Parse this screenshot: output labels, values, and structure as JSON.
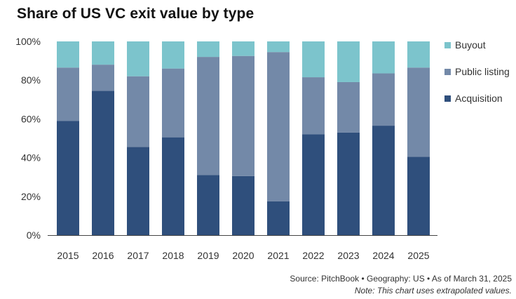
{
  "title": "Share of US VC exit value by type",
  "colors": {
    "buyout": "#7cc4cc",
    "public_listing": "#7389a8",
    "acquisition": "#2f4f7c",
    "axis": "#444444",
    "tick_text": "#333333"
  },
  "legend": [
    {
      "label": "Buyout",
      "color": "#7cc4cc"
    },
    {
      "label": "Public listing",
      "color": "#7389a8"
    },
    {
      "label": "Acquisition",
      "color": "#2f4f7c"
    }
  ],
  "footer": {
    "source": "Source: PitchBook  •  Geography: US  •  As of March 31, 2025",
    "note": "Note: This chart uses extrapolated values."
  },
  "chart_data": {
    "type": "bar",
    "stacked": true,
    "title": "Share of US VC exit value by type",
    "xlabel": "",
    "ylabel": "",
    "ylim": [
      0,
      100
    ],
    "yticks": [
      "0%",
      "20%",
      "40%",
      "60%",
      "80%",
      "100%"
    ],
    "categories": [
      "2015",
      "2016",
      "2017",
      "2018",
      "2019",
      "2020",
      "2021",
      "2022",
      "2023",
      "2024",
      "2025"
    ],
    "series": [
      {
        "name": "Acquisition",
        "values": [
          59,
          74.5,
          45.5,
          50.5,
          31,
          30.5,
          17.5,
          52,
          53,
          56.5,
          40.5
        ]
      },
      {
        "name": "Public listing",
        "values": [
          27.5,
          13.5,
          36.5,
          35.5,
          61,
          62,
          77,
          29.5,
          26,
          27,
          46
        ]
      },
      {
        "name": "Buyout",
        "values": [
          13.5,
          12,
          18,
          14,
          8,
          7.5,
          5.5,
          18.5,
          21,
          16.5,
          13.5
        ]
      }
    ],
    "legend_position": "right"
  }
}
